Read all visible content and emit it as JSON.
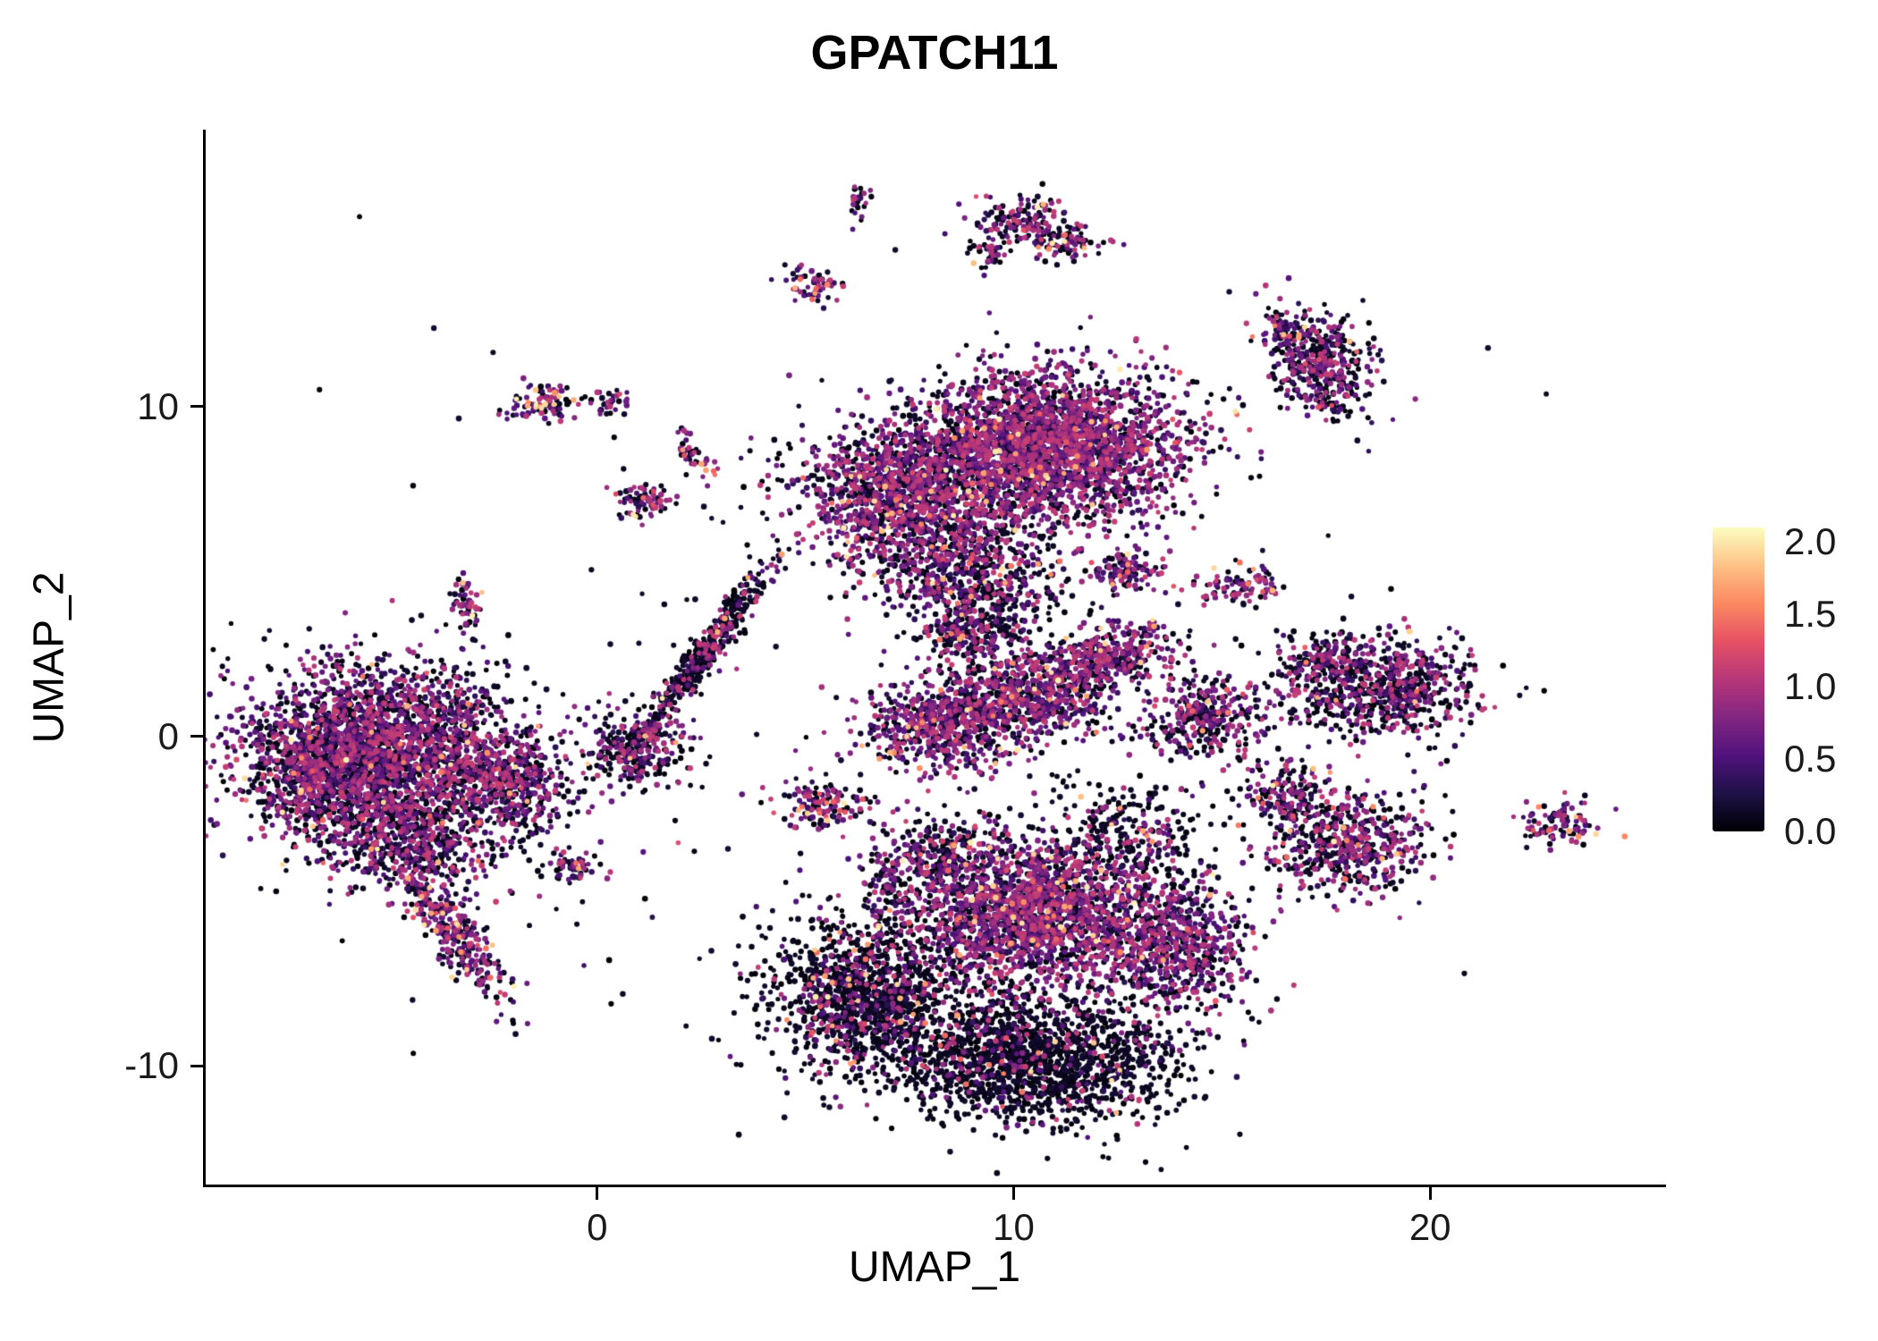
{
  "figure": {
    "title": "GPATCH11",
    "xlabel": "UMAP_1",
    "ylabel": "UMAP_2"
  },
  "chart_data": {
    "type": "scatter",
    "title": "GPATCH11",
    "xlabel": "UMAP_1",
    "ylabel": "UMAP_2",
    "xlim": [
      -9.4,
      25.6
    ],
    "ylim": [
      -13.6,
      18.4
    ],
    "x_ticks": [
      0,
      10,
      20
    ],
    "y_ticks": [
      -10,
      0,
      10
    ],
    "grid": false,
    "legend": {
      "position": "right",
      "ticks": [
        "2.0",
        "1.5",
        "1.0",
        "0.5",
        "0.0"
      ],
      "tick_values": [
        2.0,
        1.5,
        1.0,
        0.5,
        0.0
      ],
      "min": 0,
      "max": 2.1
    },
    "colormap": {
      "name": "magma",
      "stops": [
        {
          "pos": 0.0,
          "color": "#000004"
        },
        {
          "pos": 0.125,
          "color": "#1d1147"
        },
        {
          "pos": 0.25,
          "color": "#51127c"
        },
        {
          "pos": 0.375,
          "color": "#822681"
        },
        {
          "pos": 0.5,
          "color": "#b63679"
        },
        {
          "pos": 0.625,
          "color": "#e65164"
        },
        {
          "pos": 0.75,
          "color": "#fb8861"
        },
        {
          "pos": 0.875,
          "color": "#fec287"
        },
        {
          "pos": 1.0,
          "color": "#fcfdbf"
        }
      ]
    },
    "point_radius": 2.6,
    "cluster_fields": [
      "center_x",
      "center_y",
      "sd_x",
      "sd_y",
      "n_points",
      "rot_deg",
      "frac_zero_expr",
      "frac_high_expr"
    ],
    "clusters": [
      [
        -5.2,
        -0.3,
        1.7,
        1.25,
        2300,
        0,
        0.4,
        0.015
      ],
      [
        -6.6,
        -1.2,
        0.9,
        0.9,
        500,
        0,
        0.45,
        0.01
      ],
      [
        -4.6,
        -3.1,
        1.15,
        0.85,
        650,
        0,
        0.45,
        0.012
      ],
      [
        -3.4,
        -6.0,
        0.3,
        1.15,
        320,
        30,
        0.35,
        0.06
      ],
      [
        -2.3,
        -1.3,
        0.85,
        0.8,
        420,
        0,
        0.5,
        0.01
      ],
      [
        -0.6,
        -4.0,
        0.3,
        0.22,
        60,
        0,
        0.4,
        0.05
      ],
      [
        -3.1,
        4.0,
        0.18,
        0.45,
        55,
        0,
        0.35,
        0.06
      ],
      [
        1.0,
        -0.4,
        0.6,
        0.55,
        300,
        0,
        0.55,
        0.01
      ],
      [
        2.6,
        2.6,
        0.18,
        1.5,
        430,
        -31,
        0.75,
        0.01
      ],
      [
        -1.2,
        10.1,
        0.5,
        0.3,
        100,
        0,
        0.35,
        0.09
      ],
      [
        0.3,
        10.1,
        0.22,
        0.18,
        30,
        0,
        0.4,
        0.08
      ],
      [
        2.3,
        8.5,
        0.2,
        0.45,
        40,
        20,
        0.3,
        0.12
      ],
      [
        1.1,
        7.1,
        0.35,
        0.28,
        75,
        0,
        0.35,
        0.1
      ],
      [
        6.3,
        16.2,
        0.16,
        0.3,
        28,
        0,
        0.35,
        0.08
      ],
      [
        10.2,
        15.5,
        0.65,
        0.4,
        150,
        0,
        0.45,
        0.04
      ],
      [
        11.4,
        14.9,
        0.5,
        0.28,
        70,
        0,
        0.5,
        0.04
      ],
      [
        9.4,
        14.6,
        0.25,
        0.2,
        35,
        0,
        0.5,
        0.04
      ],
      [
        5.2,
        13.7,
        0.33,
        0.28,
        60,
        0,
        0.35,
        0.1
      ],
      [
        10.9,
        8.8,
        1.55,
        1.15,
        2700,
        0,
        0.3,
        0.02
      ],
      [
        7.3,
        7.6,
        1.2,
        1.0,
        1150,
        0,
        0.35,
        0.025
      ],
      [
        8.4,
        5.7,
        1.3,
        1.0,
        650,
        0,
        0.45,
        0.05
      ],
      [
        9.4,
        4.1,
        1.0,
        0.75,
        320,
        0,
        0.7,
        0.03
      ],
      [
        12.7,
        5.0,
        0.5,
        0.33,
        110,
        0,
        0.35,
        0.04
      ],
      [
        8.3,
        0.3,
        0.95,
        0.7,
        620,
        0,
        0.35,
        0.05
      ],
      [
        10.3,
        1.2,
        1.0,
        0.7,
        620,
        0,
        0.35,
        0.03
      ],
      [
        12.2,
        2.4,
        0.8,
        0.45,
        380,
        20,
        0.35,
        0.03
      ],
      [
        9.0,
        3.1,
        0.5,
        0.4,
        140,
        0,
        0.5,
        0.04
      ],
      [
        15.4,
        4.6,
        0.5,
        0.35,
        95,
        0,
        0.35,
        0.06
      ],
      [
        14.6,
        0.6,
        0.8,
        0.6,
        340,
        0,
        0.45,
        0.04
      ],
      [
        18.8,
        1.5,
        1.1,
        0.75,
        680,
        0,
        0.55,
        0.015
      ],
      [
        17.3,
        2.3,
        0.5,
        0.4,
        120,
        0,
        0.5,
        0.02
      ],
      [
        18.1,
        -3.3,
        0.95,
        0.75,
        520,
        0,
        0.45,
        0.03
      ],
      [
        16.5,
        -1.7,
        0.55,
        0.55,
        160,
        0,
        0.5,
        0.04
      ],
      [
        23.2,
        -2.6,
        0.42,
        0.42,
        100,
        0,
        0.35,
        0.07
      ],
      [
        17.4,
        11.3,
        0.55,
        0.85,
        420,
        25,
        0.55,
        0.02
      ],
      [
        16.6,
        12.3,
        0.3,
        0.25,
        60,
        0,
        0.5,
        0.03
      ],
      [
        6.4,
        -7.8,
        1.15,
        1.15,
        1250,
        0,
        0.78,
        0.035
      ],
      [
        10.4,
        -5.4,
        1.65,
        1.1,
        2100,
        0,
        0.3,
        0.02
      ],
      [
        10.4,
        -9.8,
        1.75,
        1.0,
        1700,
        0,
        0.85,
        0.01
      ],
      [
        14.0,
        -6.4,
        0.9,
        1.0,
        600,
        0,
        0.35,
        0.02
      ],
      [
        12.7,
        -2.9,
        1.0,
        0.7,
        280,
        0,
        0.75,
        0.04
      ],
      [
        8.3,
        -3.6,
        0.8,
        0.6,
        240,
        0,
        0.6,
        0.05
      ],
      [
        5.4,
        -2.1,
        0.5,
        0.4,
        130,
        0,
        0.4,
        0.1
      ],
      [
        7.0,
        -4.4,
        0.2,
        0.45,
        55,
        0,
        0.5,
        0.06
      ],
      [
        8.0,
        2.0,
        8.0,
        7.0,
        150,
        0,
        0.8,
        0.02
      ],
      [
        -2.0,
        -2.0,
        3.0,
        2.5,
        60,
        0,
        0.7,
        0.02
      ]
    ]
  }
}
